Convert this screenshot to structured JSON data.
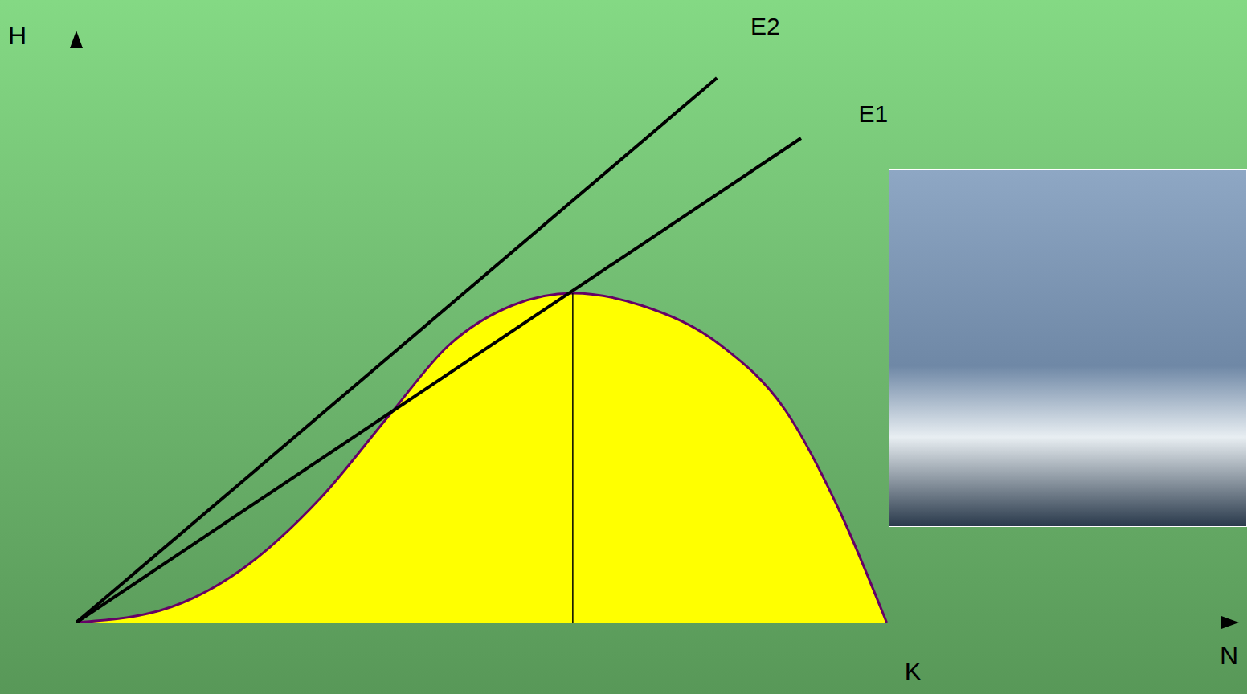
{
  "chart_data": {
    "type": "area",
    "axis_labels": {
      "x": "N",
      "y": "H"
    },
    "xlim": [
      0,
      14.5
    ],
    "ylim": [
      0,
      7.35
    ],
    "xticks": [],
    "yticks": [],
    "tick_labels": false,
    "grid": false,
    "curve": {
      "color": "#ffff00",
      "x": [
        0,
        1.05,
        2.05,
        3.05,
        3.9,
        4.65,
        5.45,
        6.2,
        7.05,
        8.05,
        8.85,
        9.55,
        10.12
      ],
      "values": [
        0,
        0.15,
        0.65,
        1.55,
        2.57,
        3.45,
        3.95,
        4.1,
        3.95,
        3.45,
        2.65,
        1.35,
        0
      ]
    },
    "series": [
      {
        "name": "E2",
        "color": "#000000",
        "x": [
          0,
          8.0
        ],
        "values": [
          0,
          6.78
        ]
      },
      {
        "name": "E1",
        "color": "#000000",
        "x": [
          0,
          9.05
        ],
        "values": [
          0,
          6.03
        ]
      }
    ],
    "reference_line": {
      "x": 6.2,
      "values": [
        0,
        4.1
      ]
    },
    "annotations": [
      {
        "text": "K",
        "x": 10.12,
        "y": 0
      }
    ]
  }
}
